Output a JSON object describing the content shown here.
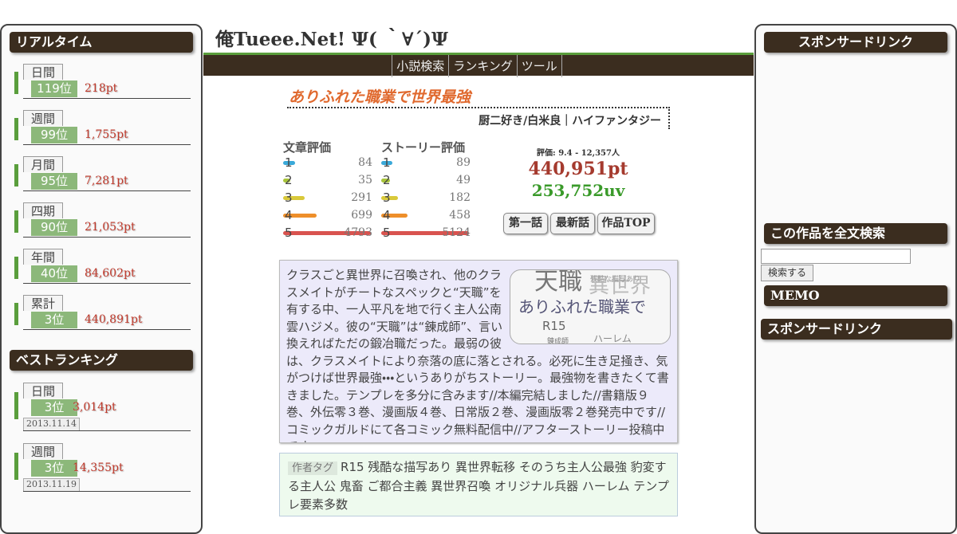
{
  "header": {
    "site_title": "俺Tueee.Net! Ψ( ｀∀´)Ψ"
  },
  "nav": [
    "小説検索",
    "ランキング",
    "ツール"
  ],
  "left_sidebar": {
    "realtime": {
      "heading": "リアルタイム",
      "items": [
        {
          "period": "日間",
          "rank": "119位",
          "points": "218pt"
        },
        {
          "period": "週間",
          "rank": "99位",
          "points": "1,755pt"
        },
        {
          "period": "月間",
          "rank": "95位",
          "points": "7,281pt"
        },
        {
          "period": "四期",
          "rank": "90位",
          "points": "21,053pt"
        },
        {
          "period": "年間",
          "rank": "40位",
          "points": "84,602pt"
        },
        {
          "period": "累計",
          "rank": "3位",
          "points": "440,891pt"
        }
      ]
    },
    "best": {
      "heading": "ベストランキング",
      "items": [
        {
          "period": "日間",
          "rank": "3位",
          "points": "3,014pt",
          "date": "2013.11.14"
        },
        {
          "period": "週間",
          "rank": "3位",
          "points": "14,355pt",
          "date": "2013.11.19"
        }
      ]
    }
  },
  "work": {
    "title": "ありふれた職業で世界最強",
    "meta": "厨二好き/白米良｜ハイファンタジー",
    "ratings": [
      {
        "label": "文章評価",
        "rows": [
          {
            "level": 1,
            "count": 84
          },
          {
            "level": 2,
            "count": 35
          },
          {
            "level": 3,
            "count": 291
          },
          {
            "level": 4,
            "count": 699
          },
          {
            "level": 5,
            "count": 4793
          }
        ]
      },
      {
        "label": "ストーリー評価",
        "rows": [
          {
            "level": 1,
            "count": 89
          },
          {
            "level": 2,
            "count": 49
          },
          {
            "level": 3,
            "count": 182
          },
          {
            "level": 4,
            "count": 458
          },
          {
            "level": 5,
            "count": 5124
          }
        ]
      }
    ],
    "rating_summary": "評価: 9.4 - 12,357人",
    "points": "440,951pt",
    "uv": "253,752uv",
    "buttons": [
      "第一話",
      "最新話",
      "作品TOP"
    ],
    "description": "クラスごと異世界に召喚され、他のクラスメイトがチートなスペックと“天職”を有する中、一人平凡を地で行く主人公南雲ハジメ。彼の“天職”は“錬成師”、言い換えればただの鍛冶職だった。最弱の彼は、クラスメイトにより奈落の底に落とされる。必死に生き足掻き、気がつけば世界最強・・・というありがちストーリー。最強物を書きたくて書きました。テンプレを多分に含みます//本編完結しました//書籍版９巻、外伝零３巻、漫画版４巻、日常版２巻、漫画版零２巻発売中です//コミックガルドにて各コミック無料配信中//アフターストーリー投稿中です",
    "wordcloud": [
      "天職",
      "異世界",
      "ありふれた職業で",
      "R15",
      "ハーレム",
      "錬成師",
      "残酷な描写あり"
    ],
    "tags_label": "作者タグ",
    "tags": "R15 残酷な描写あり 異世界転移 そのうち主人公最強 豹変する主人公 鬼畜 ご都合主義 異世界召喚 オリジナル兵器 ハーレム テンプレ要素多数"
  },
  "right_sidebar": {
    "sponsor_heading": "スポンサードリンク",
    "search_heading": "この作品を全文検索",
    "search_button": "検索する",
    "memo_heading": "MEMO",
    "sponsor_heading_2": "スポンサードリンク"
  }
}
